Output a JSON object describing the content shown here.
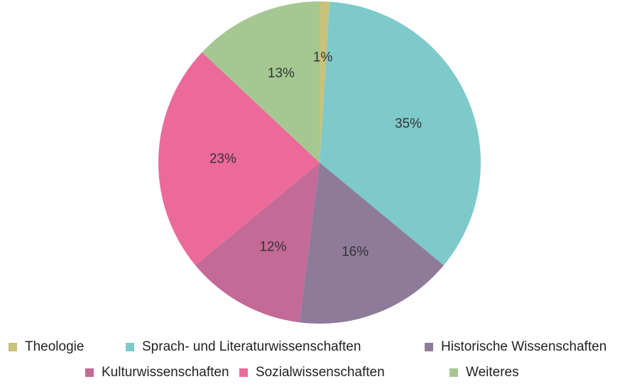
{
  "chart_data": {
    "type": "pie",
    "categories": [
      "Theologie",
      "Sprach- und Literaturwissenschaften",
      "Historische Wissenschaften",
      "Kulturwissenschaften",
      "Sozialwissenschaften",
      "Weiteres"
    ],
    "values": [
      1,
      35,
      16,
      12,
      23,
      13
    ],
    "value_labels": [
      "1%",
      "35%",
      "16%",
      "12%",
      "23%",
      "13%"
    ],
    "colors": [
      "#c9c27a",
      "#7ecaca",
      "#8e7b9a",
      "#c46a96",
      "#ec6a99",
      "#a5c893"
    ],
    "legend": "bottom"
  }
}
